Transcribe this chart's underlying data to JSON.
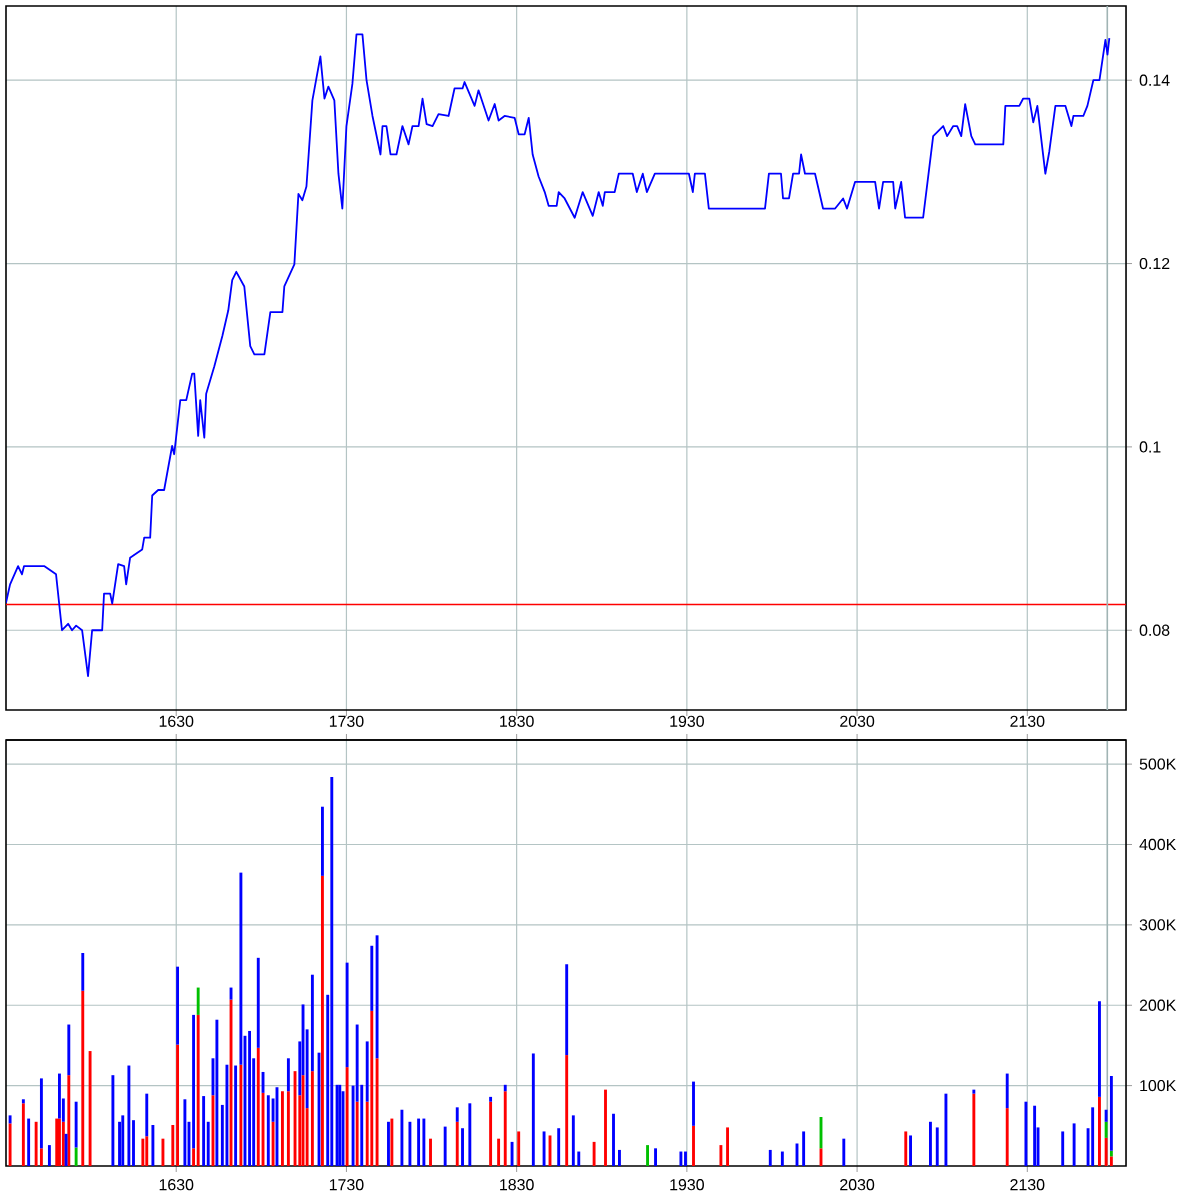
{
  "chart_data": [
    {
      "type": "line",
      "color": "#0000ff",
      "grid": true,
      "tick_labels": "y",
      "xlim": [
        1530,
        2188
      ],
      "ylim": [
        0.0713,
        0.1481
      ],
      "xticks": [
        1630,
        1730,
        1830,
        1930,
        2030,
        2130
      ],
      "yticks": [
        0.08,
        0.1,
        0.12,
        0.14
      ],
      "ref_lines": [
        {
          "axis": "y",
          "value": 0.0828,
          "color": "#ff0000"
        },
        {
          "axis": "x",
          "value": 2177,
          "color": "#a0b4b4"
        }
      ],
      "x": [
        1530,
        1532.4,
        1537.1,
        1539.4,
        1540.6,
        1552.4,
        1557.1,
        1559.4,
        1562.9,
        1566.5,
        1568.8,
        1571.2,
        1574.7,
        1578.2,
        1580.6,
        1586.5,
        1587.6,
        1591.2,
        1592.4,
        1595.9,
        1599.4,
        1600.6,
        1602.9,
        1610,
        1611.2,
        1614.7,
        1615.9,
        1619.4,
        1622.9,
        1627.6,
        1628.8,
        1632.4,
        1635.9,
        1639.4,
        1640.6,
        1642.9,
        1644.1,
        1646.5,
        1647.6,
        1652.4,
        1657.1,
        1660.6,
        1662.9,
        1665.3,
        1670,
        1673.5,
        1675.9,
        1681.8,
        1685.3,
        1692.4,
        1693.5,
        1699.4,
        1701.8,
        1704.1,
        1706.5,
        1710,
        1714.7,
        1717.1,
        1719.4,
        1722.9,
        1725.3,
        1727.6,
        1730,
        1733.5,
        1735.9,
        1739.4,
        1741.8,
        1745.3,
        1750,
        1751.2,
        1753.5,
        1755.9,
        1759.4,
        1762.9,
        1766.5,
        1768.8,
        1772.4,
        1774.7,
        1777.1,
        1780.6,
        1784.1,
        1790,
        1793.5,
        1798.2,
        1799.4,
        1805.3,
        1807.6,
        1813.5,
        1817.1,
        1819.4,
        1822.9,
        1828.8,
        1831.2,
        1834.7,
        1837.1,
        1839.4,
        1842.9,
        1846.5,
        1848.8,
        1853.5,
        1854.7,
        1858.2,
        1864.1,
        1868.8,
        1874.7,
        1878.2,
        1880.6,
        1881.8,
        1887.6,
        1890,
        1898.2,
        1900.6,
        1904.1,
        1906.5,
        1911.2,
        1931.2,
        1933.5,
        1934.7,
        1940.6,
        1942.9,
        1975.9,
        1978.2,
        1985.3,
        1986.5,
        1990,
        1992.4,
        1995.9,
        1997.1,
        1999.4,
        2005.3,
        2010,
        2017.1,
        2021.8,
        2024.1,
        2028.8,
        2040.6,
        2042.9,
        2045.3,
        2051.2,
        2052.4,
        2055.9,
        2058.2,
        2068.8,
        2074.7,
        2080.6,
        2082.9,
        2086.5,
        2088.8,
        2091.2,
        2093.5,
        2097.1,
        2099.4,
        2115.9,
        2117.1,
        2125.3,
        2127.6,
        2131.2,
        2133.5,
        2135.9,
        2140.6,
        2142.9,
        2146.5,
        2152.4,
        2155.9,
        2157.1,
        2162.9,
        2165.3,
        2168.8,
        2172.4,
        2175.9,
        2177.1,
        2178.2
      ],
      "values": [
        0.083,
        0.085,
        0.087,
        0.0861,
        0.087,
        0.087,
        0.0864,
        0.0861,
        0.08,
        0.0807,
        0.08,
        0.0805,
        0.08,
        0.075,
        0.08,
        0.08,
        0.084,
        0.084,
        0.0829,
        0.0872,
        0.087,
        0.085,
        0.0879,
        0.0888,
        0.0901,
        0.0901,
        0.0947,
        0.0953,
        0.0953,
        0.1001,
        0.0992,
        0.1051,
        0.1051,
        0.108,
        0.108,
        0.1012,
        0.1051,
        0.101,
        0.1058,
        0.1088,
        0.1121,
        0.1149,
        0.1182,
        0.1191,
        0.1175,
        0.111,
        0.1101,
        0.1101,
        0.1147,
        0.1147,
        0.1175,
        0.1199,
        0.1276,
        0.1269,
        0.1284,
        0.1378,
        0.1426,
        0.138,
        0.1393,
        0.1378,
        0.1298,
        0.126,
        0.135,
        0.1396,
        0.145,
        0.145,
        0.14,
        0.1361,
        0.1319,
        0.135,
        0.135,
        0.1319,
        0.1319,
        0.135,
        0.133,
        0.135,
        0.135,
        0.138,
        0.1352,
        0.135,
        0.1363,
        0.1361,
        0.1391,
        0.1391,
        0.1398,
        0.1372,
        0.1389,
        0.1356,
        0.1374,
        0.1356,
        0.1361,
        0.1359,
        0.1341,
        0.1341,
        0.1359,
        0.1319,
        0.1295,
        0.1278,
        0.1263,
        0.1263,
        0.1278,
        0.1271,
        0.125,
        0.1278,
        0.1252,
        0.1278,
        0.1263,
        0.1278,
        0.1278,
        0.1298,
        0.1298,
        0.1278,
        0.1298,
        0.1278,
        0.1298,
        0.1298,
        0.1278,
        0.1298,
        0.1298,
        0.126,
        0.126,
        0.1298,
        0.1298,
        0.1271,
        0.1271,
        0.1298,
        0.1298,
        0.1319,
        0.1298,
        0.1298,
        0.126,
        0.126,
        0.1271,
        0.126,
        0.1289,
        0.1289,
        0.126,
        0.1289,
        0.1289,
        0.126,
        0.1289,
        0.125,
        0.125,
        0.1339,
        0.135,
        0.1339,
        0.135,
        0.135,
        0.1339,
        0.1374,
        0.1339,
        0.133,
        0.133,
        0.1372,
        0.1372,
        0.138,
        0.138,
        0.1354,
        0.1372,
        0.1298,
        0.1322,
        0.1372,
        0.1372,
        0.135,
        0.1361,
        0.1361,
        0.1372,
        0.14,
        0.14,
        0.1444,
        0.1428,
        0.1446
      ]
    },
    {
      "type": "bar",
      "stacked": true,
      "grid": true,
      "xlim": [
        1530,
        2188
      ],
      "ylim": [
        0,
        530
      ],
      "xticks": [
        1630,
        1730,
        1830,
        1930,
        2030,
        2130
      ],
      "x2lim": [
        1530,
        2188
      ],
      "x2ticks": [
        1630,
        1730,
        1830,
        1930,
        2030,
        2130
      ],
      "yticks": [
        {
          "value": 100,
          "label": "100K"
        },
        {
          "value": 200,
          "label": "200K"
        },
        {
          "value": 300,
          "label": "300K"
        },
        {
          "value": 400,
          "label": "400K"
        },
        {
          "value": 500,
          "label": "500K"
        }
      ],
      "ref_lines": [
        {
          "axis": "x",
          "value": 2177,
          "color": "#a0b4b4"
        }
      ],
      "x": [
        1532.4,
        1540.2,
        1543.3,
        1547.7,
        1550.8,
        1555.5,
        1559.8,
        1561.4,
        1563.7,
        1565.3,
        1566.9,
        1571.2,
        1575.1,
        1579.4,
        1592.8,
        1596.7,
        1598.6,
        1602.2,
        1604.9,
        1610.4,
        1612.7,
        1616.3,
        1622.2,
        1628,
        1630.8,
        1635.1,
        1637.5,
        1640.2,
        1642.9,
        1646.1,
        1648.8,
        1651.6,
        1653.9,
        1657.1,
        1659.8,
        1662.2,
        1664.9,
        1668,
        1670.4,
        1673.1,
        1675.5,
        1678.2,
        1681,
        1684.1,
        1686.9,
        1689.2,
        1692.4,
        1695.9,
        1699.8,
        1702.6,
        1704.5,
        1706.9,
        1710,
        1713.9,
        1715.9,
        1719,
        1721.4,
        1724.5,
        1726.1,
        1728,
        1730.4,
        1733.9,
        1736.3,
        1739,
        1742.2,
        1744.9,
        1748,
        1754.7,
        1756.7,
        1762.6,
        1767.3,
        1772.4,
        1775.5,
        1779.4,
        1788,
        1795.1,
        1798.2,
        1802.5,
        1814.7,
        1819.4,
        1823.3,
        1827.3,
        1831.2,
        1839.8,
        1846.1,
        1849.6,
        1854.7,
        1859.4,
        1863.3,
        1866.5,
        1875.5,
        1882.2,
        1886.9,
        1890.4,
        1906.9,
        1911.6,
        1926.5,
        1929.2,
        1933.9,
        1950,
        1953.9,
        1979,
        1986.1,
        1994.7,
        1998.6,
        2008.8,
        2022.2,
        2058.6,
        2061.4,
        2073.1,
        2077.1,
        2082.2,
        2098.6,
        2118.2,
        2129.2,
        2134.3,
        2136.3,
        2150.8,
        2157.5,
        2165.7,
        2168.4,
        2172.4,
        2176.3,
        2179.4
      ],
      "series": [
        {
          "color": "#ff0000",
          "values": [
            53,
            78,
            null,
            55,
            22,
            null,
            59,
            59,
            55,
            null,
            113,
            null,
            218,
            143,
            null,
            null,
            null,
            null,
            null,
            34,
            37,
            null,
            34,
            51,
            151,
            null,
            null,
            22,
            188,
            null,
            null,
            88,
            null,
            null,
            null,
            207,
            null,
            126,
            null,
            null,
            null,
            147,
            91,
            null,
            55,
            null,
            93,
            93,
            118,
            88,
            113,
            72,
            118,
            null,
            361,
            null,
            null,
            null,
            null,
            null,
            123,
            null,
            80,
            null,
            80,
            193,
            134,
            null,
            59,
            null,
            null,
            null,
            null,
            34,
            null,
            55,
            null,
            null,
            80,
            34,
            93,
            null,
            43,
            null,
            null,
            38,
            null,
            138,
            null,
            null,
            30,
            95,
            null,
            null,
            null,
            null,
            null,
            null,
            50,
            26,
            48,
            null,
            null,
            null,
            null,
            22,
            null,
            43,
            null,
            null,
            null,
            null,
            90,
            72,
            null,
            null,
            null,
            null,
            null,
            null,
            null,
            86,
            35,
            12
          ]
        },
        {
          "color": "#00c000",
          "values": [
            null,
            null,
            null,
            null,
            null,
            null,
            null,
            null,
            null,
            null,
            null,
            23,
            null,
            null,
            null,
            null,
            null,
            null,
            null,
            null,
            null,
            null,
            null,
            null,
            null,
            null,
            null,
            null,
            34,
            null,
            null,
            null,
            null,
            null,
            null,
            null,
            null,
            null,
            null,
            null,
            null,
            null,
            null,
            null,
            null,
            null,
            null,
            null,
            null,
            null,
            null,
            null,
            null,
            null,
            null,
            null,
            null,
            null,
            null,
            null,
            null,
            null,
            null,
            null,
            null,
            null,
            null,
            null,
            null,
            null,
            null,
            null,
            null,
            null,
            null,
            null,
            null,
            null,
            null,
            null,
            null,
            null,
            null,
            null,
            null,
            null,
            null,
            null,
            null,
            null,
            null,
            null,
            null,
            null,
            26,
            null,
            null,
            null,
            null,
            null,
            null,
            null,
            null,
            null,
            null,
            39,
            null,
            null,
            null,
            null,
            null,
            null,
            null,
            null,
            null,
            null,
            null,
            null,
            null,
            null,
            null,
            null,
            20,
            7
          ]
        },
        {
          "color": "#0000ff",
          "values": [
            10,
            5,
            59,
            null,
            87,
            26,
            null,
            56,
            29,
            40,
            63,
            57,
            47,
            null,
            113,
            55,
            63,
            125,
            57,
            null,
            53,
            51,
            null,
            null,
            97,
            83,
            55,
            166,
            null,
            87,
            55,
            46,
            182,
            76,
            126,
            15,
            125,
            239,
            162,
            168,
            134,
            112,
            26,
            88,
            29,
            98,
            null,
            41,
            null,
            67,
            88,
            98,
            120,
            141,
            86,
            213,
            484,
            101,
            101,
            93,
            130,
            100,
            96,
            101,
            75,
            81,
            153,
            55,
            null,
            70,
            55,
            59,
            59,
            null,
            49,
            18,
            47,
            78,
            6,
            null,
            8,
            30,
            null,
            140,
            43,
            null,
            47,
            113,
            63,
            18,
            null,
            null,
            65,
            20,
            null,
            22,
            18,
            18,
            55,
            null,
            null,
            20,
            18,
            28,
            43,
            null,
            34,
            null,
            38,
            55,
            48,
            90,
            5,
            43,
            80,
            75,
            48,
            43,
            53,
            47,
            73,
            119,
            15,
            93
          ]
        }
      ]
    }
  ]
}
